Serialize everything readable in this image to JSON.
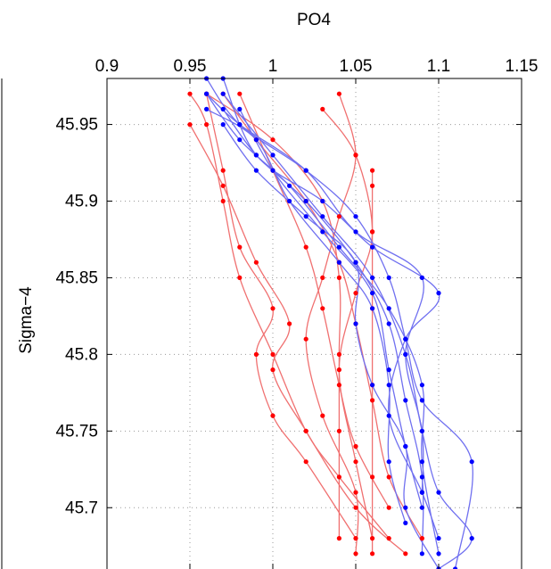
{
  "chart_data": {
    "type": "line",
    "title": "",
    "xlabel": "PO4",
    "ylabel": "Sigma−4",
    "xlim": [
      0.9,
      1.15
    ],
    "ylim": [
      45.98,
      45.66
    ],
    "y_reversed": true,
    "x_axis_position": "top",
    "grid": true,
    "legend": "none",
    "xticks": [
      "0.9",
      "0.95",
      "1",
      "1.05",
      "1.1",
      "1.15"
    ],
    "xtick_values": [
      0.9,
      0.95,
      1.0,
      1.05,
      1.1,
      1.15
    ],
    "yticks": [
      "45.7",
      "45.75",
      "45.8",
      "45.85",
      "45.9",
      "45.95"
    ],
    "ytick_values": [
      45.7,
      45.75,
      45.8,
      45.85,
      45.9,
      45.95
    ],
    "colors": {
      "red_series": "#ff0000",
      "blue_series": "#0000ff",
      "red_line": "#f07070",
      "blue_line": "#7070f0",
      "grid": "#999999"
    },
    "series": [
      {
        "color": "red",
        "points": [
          [
            1.04,
            45.68
          ],
          [
            1.04,
            45.75
          ],
          [
            1.04,
            45.8
          ],
          [
            1.04,
            45.85
          ],
          [
            1.03,
            45.9
          ],
          [
            1.0,
            45.94
          ],
          [
            0.96,
            45.97
          ]
        ]
      },
      {
        "color": "red",
        "points": [
          [
            1.06,
            45.67
          ],
          [
            1.06,
            45.72
          ],
          [
            1.06,
            45.78
          ],
          [
            1.06,
            45.83
          ],
          [
            1.06,
            45.88
          ],
          [
            1.06,
            45.91
          ],
          [
            1.06,
            45.92
          ]
        ]
      },
      {
        "color": "red",
        "points": [
          [
            1.07,
            45.68
          ],
          [
            1.04,
            45.72
          ],
          [
            1.02,
            45.75
          ],
          [
            1.0,
            45.8
          ],
          [
            0.98,
            45.85
          ],
          [
            0.97,
            45.9
          ],
          [
            0.96,
            45.95
          ],
          [
            0.95,
            45.97
          ]
        ]
      },
      {
        "color": "red",
        "points": [
          [
            1.05,
            45.68
          ],
          [
            1.02,
            45.73
          ],
          [
            1.0,
            45.76
          ],
          [
            0.99,
            45.8
          ],
          [
            1.0,
            45.83
          ],
          [
            0.98,
            45.87
          ],
          [
            0.97,
            45.92
          ],
          [
            0.96,
            45.97
          ]
        ]
      },
      {
        "color": "red",
        "points": [
          [
            1.08,
            45.67
          ],
          [
            1.05,
            45.7
          ],
          [
            1.02,
            45.75
          ],
          [
            1.0,
            45.79
          ],
          [
            1.01,
            45.82
          ],
          [
            0.99,
            45.86
          ],
          [
            0.97,
            45.91
          ],
          [
            0.95,
            45.95
          ]
        ]
      },
      {
        "color": "red",
        "points": [
          [
            1.07,
            45.7
          ],
          [
            1.05,
            45.74
          ],
          [
            1.04,
            45.78
          ],
          [
            1.03,
            45.83
          ],
          [
            1.02,
            45.87
          ],
          [
            1.0,
            45.92
          ],
          [
            0.98,
            45.97
          ]
        ]
      },
      {
        "color": "red",
        "points": [
          [
            1.09,
            45.68
          ],
          [
            1.07,
            45.72
          ],
          [
            1.06,
            45.77
          ],
          [
            1.05,
            45.82
          ],
          [
            1.04,
            45.86
          ],
          [
            1.02,
            45.9
          ],
          [
            0.99,
            45.94
          ],
          [
            0.97,
            45.97
          ]
        ]
      },
      {
        "color": "red",
        "points": [
          [
            1.06,
            45.68
          ],
          [
            1.05,
            45.73
          ],
          [
            1.04,
            45.79
          ],
          [
            1.05,
            45.84
          ],
          [
            1.06,
            45.88
          ],
          [
            1.05,
            45.93
          ],
          [
            1.03,
            45.96
          ]
        ]
      },
      {
        "color": "red",
        "points": [
          [
            1.05,
            45.67
          ],
          [
            1.05,
            45.71
          ],
          [
            1.03,
            45.76
          ],
          [
            1.02,
            45.81
          ],
          [
            1.03,
            45.85
          ],
          [
            1.04,
            45.89
          ],
          [
            1.05,
            45.93
          ],
          [
            1.04,
            45.97
          ]
        ]
      },
      {
        "color": "blue",
        "points": [
          [
            1.09,
            45.67
          ],
          [
            1.09,
            45.72
          ],
          [
            1.08,
            45.77
          ],
          [
            1.07,
            45.82
          ],
          [
            1.05,
            45.86
          ],
          [
            1.02,
            45.9
          ],
          [
            0.99,
            45.93
          ],
          [
            0.97,
            45.96
          ]
        ]
      },
      {
        "color": "blue",
        "points": [
          [
            1.1,
            45.67
          ],
          [
            1.09,
            45.73
          ],
          [
            1.09,
            45.78
          ],
          [
            1.07,
            45.83
          ],
          [
            1.04,
            45.87
          ],
          [
            1.01,
            45.91
          ],
          [
            0.98,
            45.94
          ],
          [
            0.96,
            45.97
          ]
        ]
      },
      {
        "color": "blue",
        "points": [
          [
            1.1,
            45.66
          ],
          [
            1.12,
            45.68
          ],
          [
            1.1,
            45.71
          ],
          [
            1.09,
            45.75
          ],
          [
            1.08,
            45.8
          ],
          [
            1.06,
            45.85
          ],
          [
            1.03,
            45.89
          ],
          [
            1.0,
            45.93
          ],
          [
            0.97,
            45.97
          ]
        ]
      },
      {
        "color": "blue",
        "points": [
          [
            1.11,
            45.66
          ],
          [
            1.12,
            45.73
          ],
          [
            1.09,
            45.77
          ],
          [
            1.08,
            45.81
          ],
          [
            1.07,
            45.85
          ],
          [
            1.05,
            45.89
          ],
          [
            1.02,
            45.92
          ],
          [
            0.98,
            45.95
          ],
          [
            0.96,
            45.98
          ]
        ]
      },
      {
        "color": "blue",
        "points": [
          [
            1.09,
            45.7
          ],
          [
            1.08,
            45.74
          ],
          [
            1.07,
            45.79
          ],
          [
            1.06,
            45.84
          ],
          [
            1.03,
            45.88
          ],
          [
            1.0,
            45.92
          ],
          [
            0.98,
            45.96
          ]
        ]
      },
      {
        "color": "blue",
        "points": [
          [
            1.1,
            45.68
          ],
          [
            1.09,
            45.71
          ],
          [
            1.07,
            45.76
          ],
          [
            1.08,
            45.81
          ],
          [
            1.1,
            45.84
          ],
          [
            1.06,
            45.87
          ],
          [
            1.03,
            45.9
          ],
          [
            0.99,
            45.93
          ],
          [
            0.97,
            45.98
          ]
        ]
      },
      {
        "color": "blue",
        "points": [
          [
            1.08,
            45.69
          ],
          [
            1.07,
            45.73
          ],
          [
            1.07,
            45.78
          ],
          [
            1.06,
            45.83
          ],
          [
            1.04,
            45.86
          ],
          [
            1.01,
            45.9
          ],
          [
            0.99,
            45.94
          ],
          [
            0.96,
            45.96
          ]
        ]
      },
      {
        "color": "blue",
        "points": [
          [
            1.09,
            45.71
          ],
          [
            1.09,
            45.75
          ],
          [
            1.08,
            45.8
          ],
          [
            1.09,
            45.85
          ],
          [
            1.05,
            45.88
          ],
          [
            1.02,
            45.92
          ],
          [
            0.98,
            45.95
          ],
          [
            0.96,
            45.97
          ]
        ]
      },
      {
        "color": "blue",
        "points": [
          [
            1.1,
            45.66
          ],
          [
            1.08,
            45.7
          ],
          [
            1.08,
            45.74
          ],
          [
            1.06,
            45.78
          ],
          [
            1.05,
            45.82
          ],
          [
            1.05,
            45.86
          ],
          [
            1.02,
            45.89
          ],
          [
            0.99,
            45.92
          ],
          [
            0.97,
            45.95
          ]
        ]
      }
    ]
  }
}
